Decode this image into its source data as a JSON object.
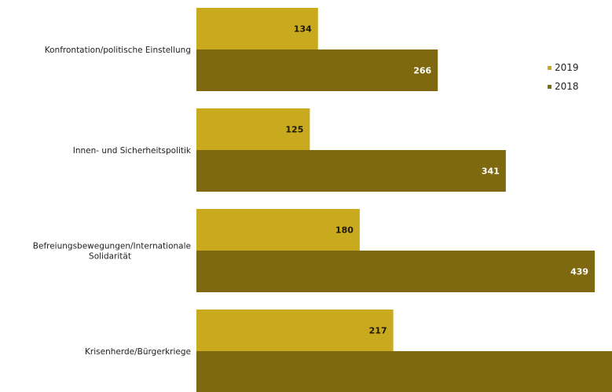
{
  "chart_data": {
    "type": "bar",
    "orientation": "horizontal",
    "categories": [
      [
        "Konfrontation/politische Einstellung"
      ],
      [
        "Innen- und Sicherheitspolitik"
      ],
      [
        "Befreiungsbewegungen/Internationale",
        "Solidarität"
      ],
      [
        "Krisenherde/Bürgerkriege"
      ]
    ],
    "series": [
      {
        "name": "2019",
        "values": [
          134,
          125,
          180,
          217
        ],
        "color": "#c9aa1f",
        "label_color": "#1f1a08"
      },
      {
        "name": "2018",
        "values": [
          266,
          341,
          439,
          487
        ],
        "color": "#7e6910",
        "label_color": "#ffffff"
      }
    ],
    "legend_order": [
      "2019",
      "2018"
    ],
    "legend_position": "right",
    "grid": false,
    "xlim": [
      0,
      470
    ]
  }
}
